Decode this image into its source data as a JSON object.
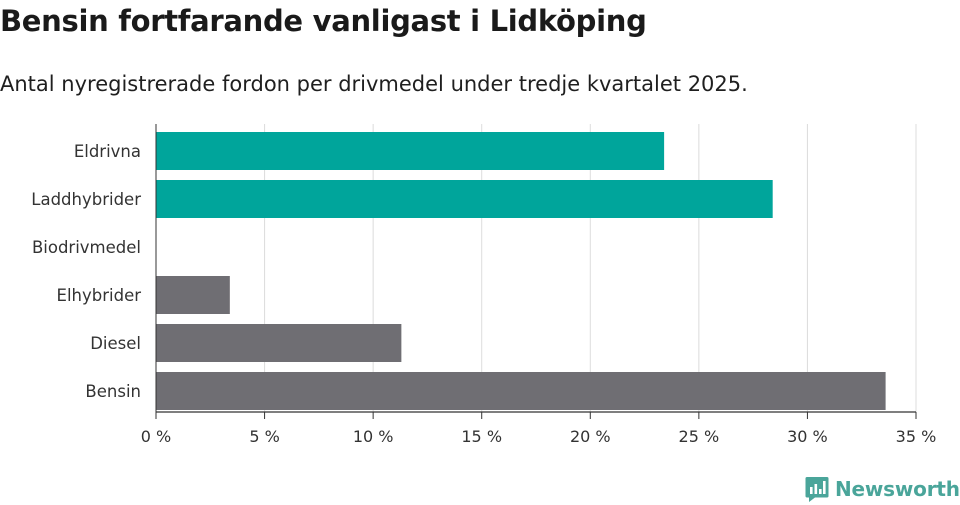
{
  "chart_data": {
    "type": "bar",
    "orientation": "horizontal",
    "title": "Bensin fortfarande vanligast i Lidköping",
    "subtitle": "Antal nyregistrerade fordon per drivmedel under tredje kvartalet 2025.",
    "categories": [
      "Eldrivna",
      "Laddhybrider",
      "Biodrivmedel",
      "Elhybrider",
      "Diesel",
      "Bensin"
    ],
    "values": [
      23.4,
      28.4,
      0,
      3.4,
      11.3,
      33.6
    ],
    "bar_colors": [
      "#00a59b",
      "#00a59b",
      "#6f6e73",
      "#6f6e73",
      "#6f6e73",
      "#6f6e73"
    ],
    "xlim": [
      0,
      35
    ],
    "xticks": [
      0,
      5,
      10,
      15,
      20,
      25,
      30,
      35
    ],
    "xtick_labels": [
      "0 %",
      "5 %",
      "10 %",
      "15 %",
      "20 %",
      "25 %",
      "30 %",
      "35 %"
    ],
    "xlabel": "",
    "ylabel": "",
    "grid": true,
    "legend": null
  },
  "brand": {
    "name": "Newsworthy",
    "color": "#4aa59a"
  }
}
